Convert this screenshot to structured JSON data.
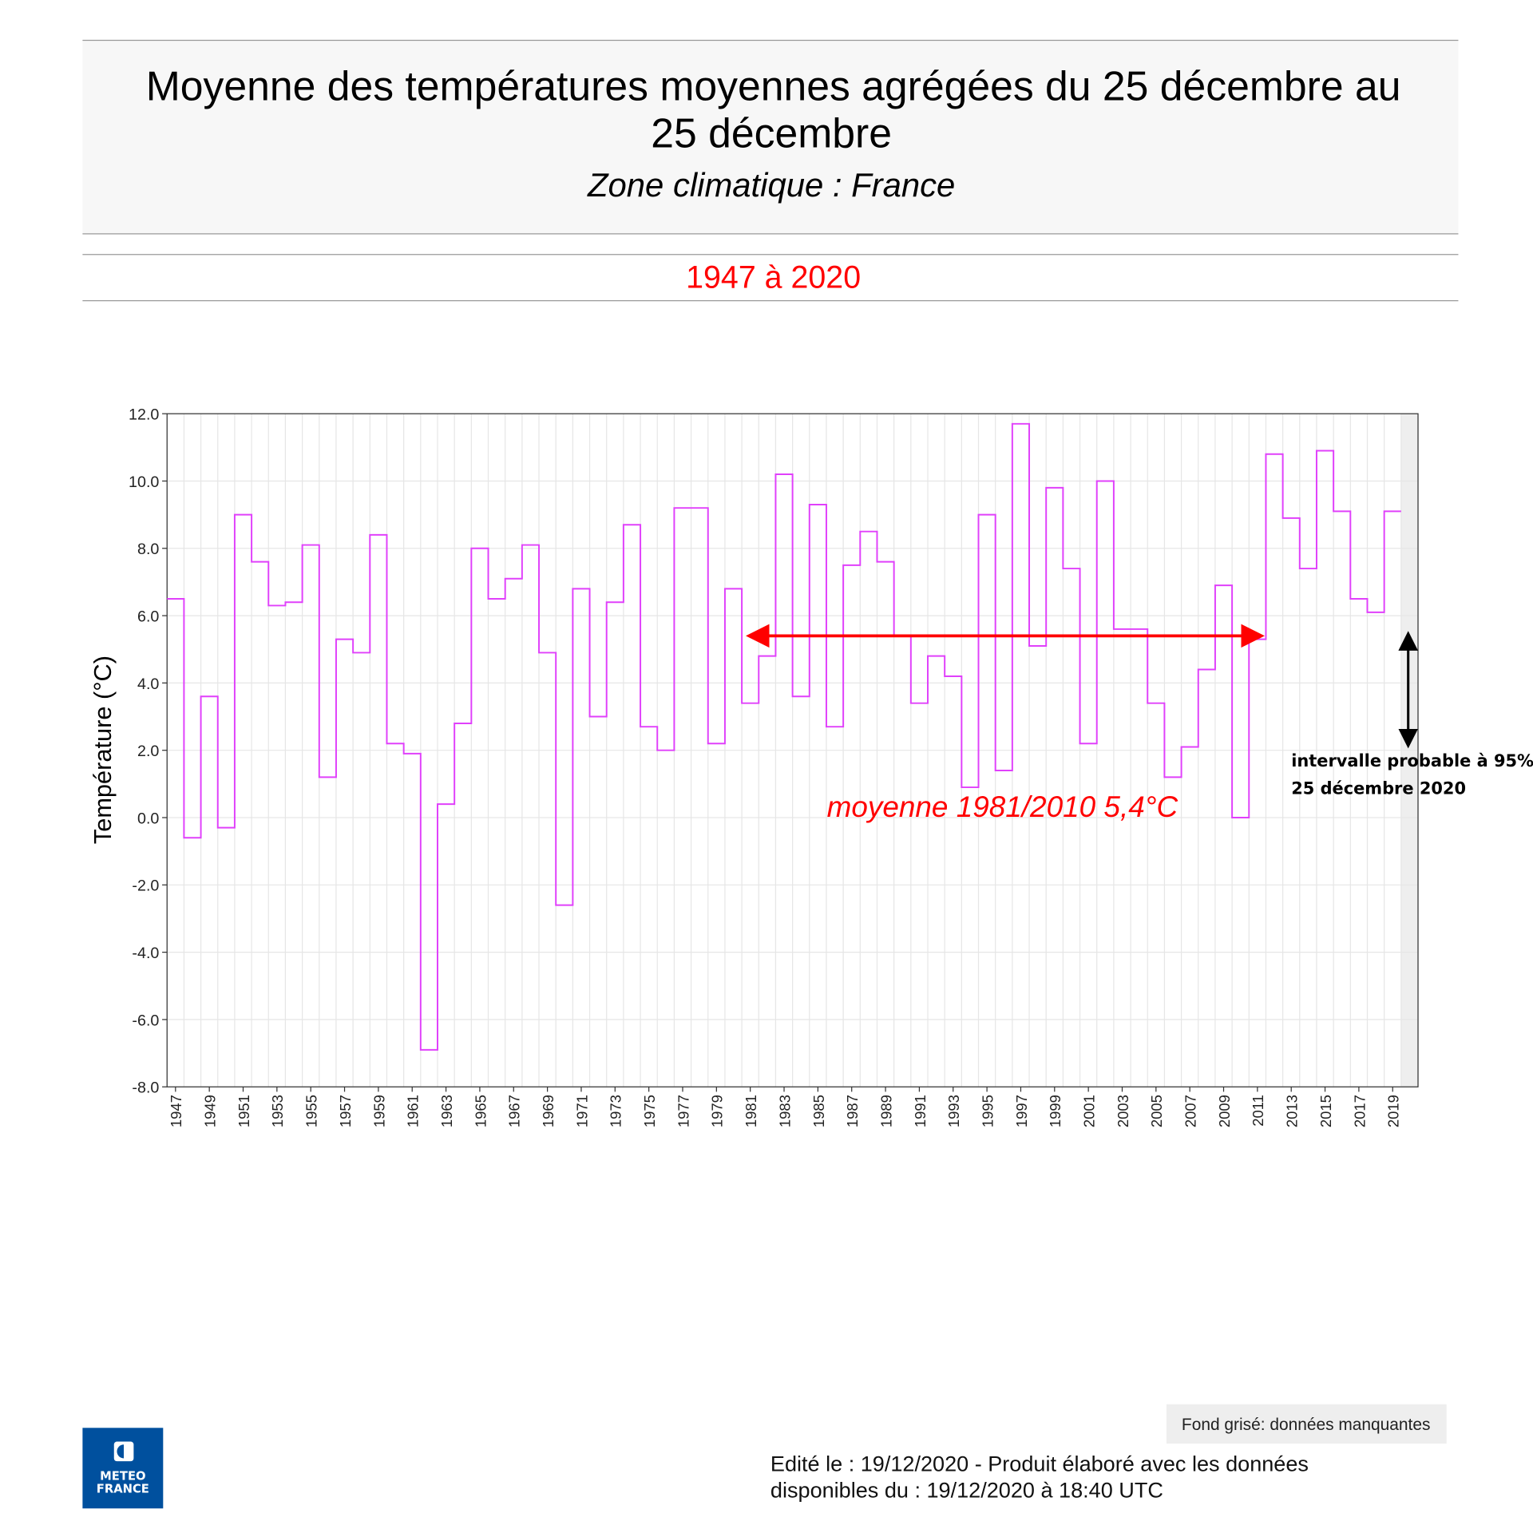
{
  "header": {
    "title_line1": "Moyenne des températures moyennes agrégées du 25 décembre au",
    "title_line2": "25 décembre",
    "subtitle": "Zone climatique : France",
    "period": "1947 à 2020"
  },
  "chart_data": {
    "type": "line",
    "style": "step",
    "ylabel": "Température (°C)",
    "ylim": [
      -8,
      12
    ],
    "yticks": [
      "12.0",
      "10.0",
      "8.0",
      "6.0",
      "4.0",
      "2.0",
      "0.0",
      "-2.0",
      "-4.0",
      "-6.0",
      "-8.0"
    ],
    "ytick_values": [
      12,
      10,
      8,
      6,
      4,
      2,
      0,
      -2,
      -4,
      -6,
      -8
    ],
    "xlim": [
      1947,
      2020
    ],
    "xtick_years": [
      1947,
      1949,
      1951,
      1953,
      1955,
      1957,
      1959,
      1961,
      1963,
      1965,
      1967,
      1969,
      1971,
      1973,
      1975,
      1977,
      1979,
      1981,
      1983,
      1985,
      1987,
      1989,
      1991,
      1993,
      1995,
      1997,
      1999,
      2001,
      2003,
      2005,
      2007,
      2009,
      2011,
      2013,
      2015,
      2017,
      2019
    ],
    "grid": true,
    "line_color": "#e040fb",
    "missing_data_year": 2020,
    "missing_color": "#eeeeee",
    "x": [
      1947,
      1948,
      1949,
      1950,
      1951,
      1952,
      1953,
      1954,
      1955,
      1956,
      1957,
      1958,
      1959,
      1960,
      1961,
      1962,
      1963,
      1964,
      1965,
      1966,
      1967,
      1968,
      1969,
      1970,
      1971,
      1972,
      1973,
      1974,
      1975,
      1976,
      1977,
      1978,
      1979,
      1980,
      1981,
      1982,
      1983,
      1984,
      1985,
      1986,
      1987,
      1988,
      1989,
      1990,
      1991,
      1992,
      1993,
      1994,
      1995,
      1996,
      1997,
      1998,
      1999,
      2000,
      2001,
      2002,
      2003,
      2004,
      2005,
      2006,
      2007,
      2008,
      2009,
      2010,
      2011,
      2012,
      2013,
      2014,
      2015,
      2016,
      2017,
      2018,
      2019
    ],
    "values": [
      6.5,
      -0.6,
      3.6,
      -0.3,
      9.0,
      7.6,
      6.3,
      6.4,
      8.1,
      1.2,
      5.3,
      4.9,
      8.4,
      2.2,
      1.9,
      -6.9,
      0.4,
      2.8,
      8.0,
      6.5,
      7.1,
      8.1,
      4.9,
      -2.6,
      6.8,
      3.0,
      6.4,
      8.7,
      2.7,
      2.0,
      9.2,
      9.2,
      2.2,
      6.8,
      3.4,
      4.8,
      10.2,
      3.6,
      9.3,
      2.7,
      7.5,
      8.5,
      7.6,
      5.4,
      3.4,
      4.8,
      4.2,
      0.9,
      9.0,
      1.4,
      11.7,
      5.1,
      9.8,
      7.4,
      2.2,
      10.0,
      5.6,
      5.6,
      3.4,
      1.2,
      2.1,
      4.4,
      6.9,
      0.0,
      5.3,
      10.8,
      8.9,
      7.4,
      10.9,
      9.1,
      6.5,
      6.1,
      9.1
    ],
    "annotations": {
      "normal_label": "moyenne 1981/2010 5,4°C",
      "normal_value": 5.4,
      "normal_range": [
        1981,
        2010
      ],
      "normal_color": "#ff0000",
      "interval_label_line1": "intervalle probable à 95%",
      "interval_label_line2": "25 décembre 2020",
      "interval_range": [
        2.2,
        5.4
      ]
    }
  },
  "footer": {
    "legend_missing": "Fond grisé: données manquantes",
    "edit_line1": "Edité le : 19/12/2020 - Produit élaboré avec les données",
    "edit_line2": "disponibles du : 19/12/2020 à 18:40 UTC",
    "logo_text_1": "METEO",
    "logo_text_2": "FRANCE",
    "logo_color": "#00509e"
  }
}
